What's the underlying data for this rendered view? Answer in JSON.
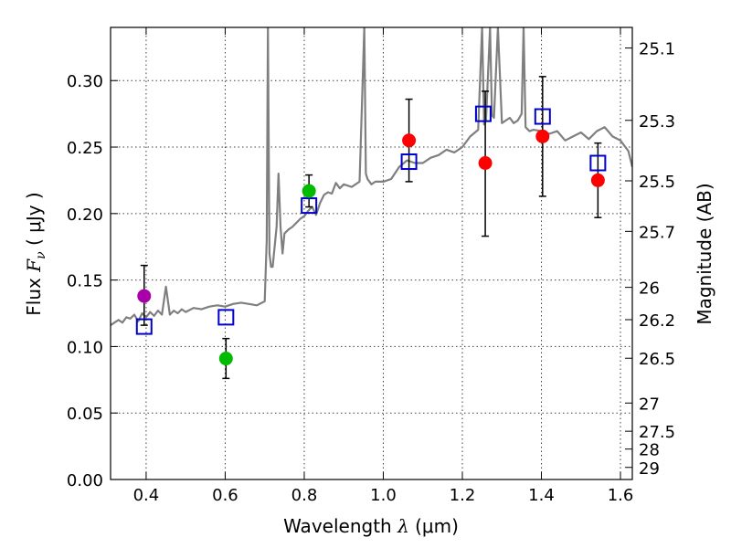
{
  "chart_data": {
    "type": "scatter",
    "title": "",
    "xlabel": "Wavelength",
    "xlabel_symbol": "λ",
    "xlabel_unit": "(μm)",
    "ylabel": "Flux",
    "ylabel_symbol": "F",
    "ylabel_subscript": "ν",
    "ylabel_unit": "( μJy )",
    "y2label": "Magnitude (AB)",
    "xlim": [
      0.31,
      1.63
    ],
    "ylim": [
      0.0,
      0.34
    ],
    "grid": true,
    "x_ticks": [
      0.4,
      0.6,
      0.8,
      1.0,
      1.2,
      1.4,
      1.6
    ],
    "x_tick_labels": [
      "0.4",
      "0.6",
      "0.8",
      "1.0",
      "1.2",
      "1.4",
      "1.6"
    ],
    "y_ticks": [
      0.0,
      0.05,
      0.1,
      0.15,
      0.2,
      0.25,
      0.3
    ],
    "y_tick_labels": [
      "0.00",
      "0.05",
      "0.10",
      "0.15",
      "0.20",
      "0.25",
      "0.30"
    ],
    "right_ticks": [
      {
        "flux": 0.3245,
        "label": "25.1"
      },
      {
        "flux": 0.2701,
        "label": "25.3"
      },
      {
        "flux": 0.2246,
        "label": "25.5"
      },
      {
        "flux": 0.1866,
        "label": "25.7"
      },
      {
        "flux": 0.1445,
        "label": "26"
      },
      {
        "flux": 0.1202,
        "label": "26.2"
      },
      {
        "flux": 0.0912,
        "label": "26.5"
      },
      {
        "flux": 0.0575,
        "label": "27"
      },
      {
        "flux": 0.0363,
        "label": "27.5"
      },
      {
        "flux": 0.0229,
        "label": "28"
      },
      {
        "flux": 0.0091,
        "label": "29"
      }
    ],
    "colors": {
      "spectrum": "#7f7f7f",
      "model": "#0000cc",
      "purple": "#aa00aa",
      "green": "#00bb00",
      "red": "#ff0000",
      "errorbar": "#000000"
    },
    "spectrum": {
      "name": "template-spectrum",
      "x": [
        0.31,
        0.32,
        0.33,
        0.34,
        0.35,
        0.36,
        0.37,
        0.38,
        0.39,
        0.4,
        0.41,
        0.42,
        0.43,
        0.44,
        0.45,
        0.46,
        0.47,
        0.48,
        0.49,
        0.5,
        0.52,
        0.54,
        0.56,
        0.58,
        0.6,
        0.62,
        0.64,
        0.66,
        0.68,
        0.7,
        0.705,
        0.708,
        0.712,
        0.716,
        0.72,
        0.73,
        0.735,
        0.74,
        0.745,
        0.75,
        0.76,
        0.77,
        0.78,
        0.79,
        0.8,
        0.81,
        0.82,
        0.83,
        0.84,
        0.85,
        0.86,
        0.87,
        0.88,
        0.89,
        0.9,
        0.92,
        0.94,
        0.952,
        0.956,
        0.96,
        0.97,
        0.98,
        1.0,
        1.02,
        1.04,
        1.06,
        1.08,
        1.1,
        1.12,
        1.14,
        1.16,
        1.18,
        1.2,
        1.22,
        1.24,
        1.25,
        1.255,
        1.26,
        1.27,
        1.275,
        1.28,
        1.29,
        1.3,
        1.31,
        1.32,
        1.33,
        1.34,
        1.35,
        1.355,
        1.36,
        1.37,
        1.38,
        1.4,
        1.42,
        1.44,
        1.46,
        1.48,
        1.5,
        1.52,
        1.54,
        1.56,
        1.58,
        1.6,
        1.62,
        1.63
      ],
      "y": [
        0.116,
        0.118,
        0.12,
        0.118,
        0.122,
        0.121,
        0.124,
        0.119,
        0.125,
        0.122,
        0.126,
        0.123,
        0.127,
        0.124,
        0.145,
        0.124,
        0.127,
        0.125,
        0.128,
        0.126,
        0.129,
        0.128,
        0.13,
        0.131,
        0.13,
        0.132,
        0.133,
        0.132,
        0.131,
        0.134,
        0.18,
        0.34,
        0.17,
        0.16,
        0.16,
        0.19,
        0.23,
        0.19,
        0.17,
        0.185,
        0.188,
        0.19,
        0.193,
        0.196,
        0.198,
        0.202,
        0.205,
        0.199,
        0.208,
        0.214,
        0.216,
        0.215,
        0.223,
        0.219,
        0.222,
        0.22,
        0.224,
        0.34,
        0.23,
        0.226,
        0.222,
        0.224,
        0.224,
        0.226,
        0.235,
        0.24,
        0.238,
        0.238,
        0.242,
        0.244,
        0.248,
        0.246,
        0.25,
        0.258,
        0.263,
        0.34,
        0.267,
        0.27,
        0.34,
        0.274,
        0.272,
        0.34,
        0.268,
        0.27,
        0.272,
        0.268,
        0.27,
        0.275,
        0.34,
        0.265,
        0.262,
        0.263,
        0.262,
        0.26,
        0.262,
        0.255,
        0.258,
        0.261,
        0.256,
        0.262,
        0.265,
        0.258,
        0.255,
        0.247,
        0.235
      ]
    },
    "model_points": {
      "name": "model-photometry",
      "x": [
        0.395,
        0.602,
        0.812,
        1.065,
        1.253,
        1.403,
        1.543
      ],
      "y": [
        0.115,
        0.122,
        0.206,
        0.239,
        0.275,
        0.273,
        0.238
      ]
    },
    "observed_points": {
      "name": "observed-photometry",
      "points": [
        {
          "x": 0.395,
          "y": 0.138,
          "err_low": 0.022,
          "err_high": 0.023,
          "color": "purple"
        },
        {
          "x": 0.602,
          "y": 0.091,
          "err_low": 0.015,
          "err_high": 0.015,
          "color": "green"
        },
        {
          "x": 0.812,
          "y": 0.217,
          "err_low": 0.012,
          "err_high": 0.012,
          "color": "green"
        },
        {
          "x": 1.065,
          "y": 0.255,
          "err_low": 0.031,
          "err_high": 0.031,
          "color": "red"
        },
        {
          "x": 1.258,
          "y": 0.238,
          "err_low": 0.055,
          "err_high": 0.054,
          "color": "red"
        },
        {
          "x": 1.403,
          "y": 0.258,
          "err_low": 0.045,
          "err_high": 0.045,
          "color": "red"
        },
        {
          "x": 1.543,
          "y": 0.225,
          "err_low": 0.028,
          "err_high": 0.028,
          "color": "red"
        }
      ]
    }
  }
}
